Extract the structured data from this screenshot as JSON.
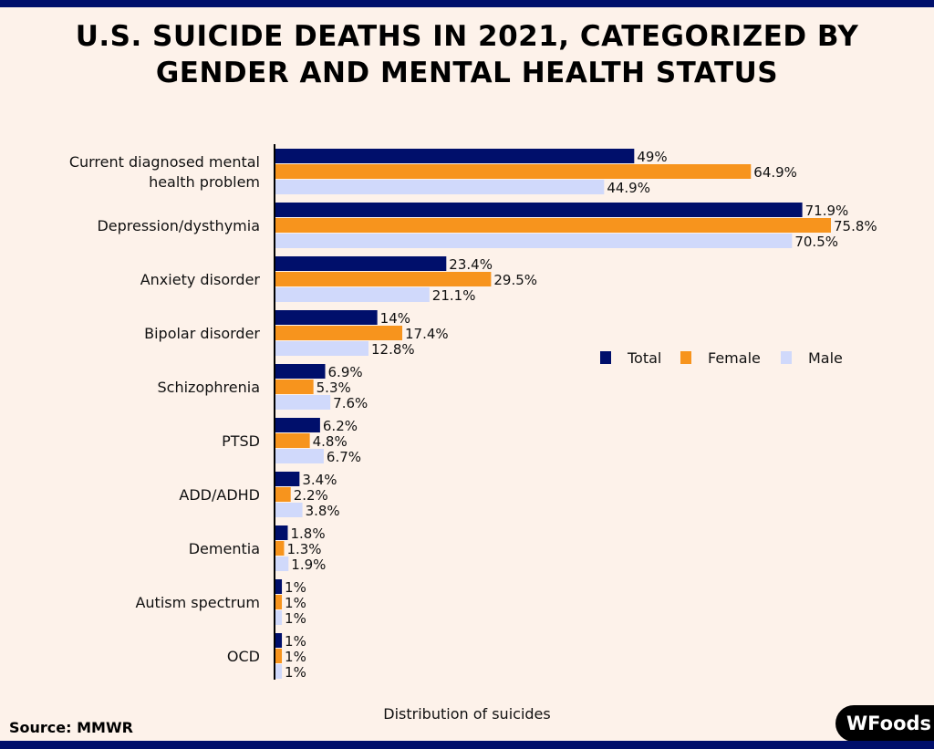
{
  "title_lines": [
    "U.S. SUICIDE DEATHS IN 2021, CATEGORIZED BY",
    "GENDER AND MENTAL HEALTH STATUS"
  ],
  "source": "Source: MMWR",
  "logo_text": "WFoods",
  "chart_data": {
    "type": "bar",
    "orientation": "horizontal",
    "title": "U.S. SUICIDE DEATHS IN 2021, CATEGORIZED BY GENDER AND MENTAL HEALTH STATUS",
    "xlabel": "Distribution  of suicides",
    "ylabel": "",
    "categories": [
      [
        "Current diagnosed mental",
        "health problem"
      ],
      [
        "Depression/dysthymia"
      ],
      [
        "Anxiety disorder"
      ],
      [
        "Bipolar disorder"
      ],
      [
        "Schizophrenia"
      ],
      [
        "PTSD"
      ],
      [
        "ADD/ADHD"
      ],
      [
        "Dementia"
      ],
      [
        "Autism spectrum"
      ],
      [
        "OCD"
      ]
    ],
    "series": [
      {
        "name": "Total",
        "color": "#000f6b",
        "values": [
          49,
          71.9,
          23.4,
          14,
          6.9,
          6.2,
          3.4,
          1.8,
          1,
          1
        ]
      },
      {
        "name": "Female",
        "color": "#f7941d",
        "values": [
          64.9,
          75.8,
          29.5,
          17.4,
          5.3,
          4.8,
          2.2,
          1.3,
          1,
          1
        ]
      },
      {
        "name": "Male",
        "color": "#d0d9fb",
        "values": [
          44.9,
          70.5,
          21.1,
          12.8,
          7.6,
          6.7,
          3.8,
          1.9,
          1,
          1
        ]
      }
    ],
    "value_suffix": "%",
    "xlim": [
      0,
      76
    ],
    "grid": false,
    "legend": "right-middle"
  }
}
